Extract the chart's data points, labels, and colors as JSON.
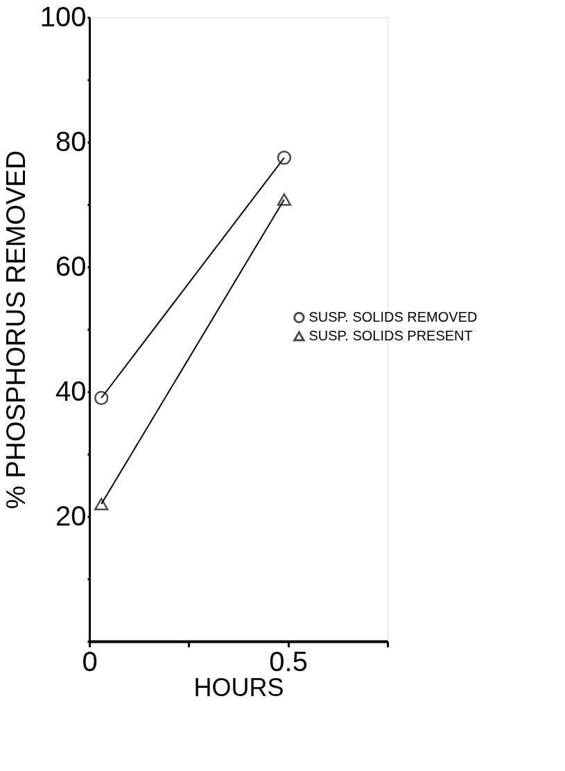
{
  "chart_data": {
    "type": "line",
    "xlabel": "HOURS",
    "ylabel": "% PHOSPHORUS  REMOVED",
    "x": [
      0.03,
      0.49
    ],
    "series": [
      {
        "name": "SUSP. SOLIDS  REMOVED",
        "color": "#000000",
        "marker": "circle",
        "values": [
          39,
          77.5
        ]
      },
      {
        "name": "SUSP. SOLIDS  PRESENT",
        "color": "#000000",
        "marker": "triangle",
        "values": [
          22,
          70.8
        ]
      }
    ],
    "xlim": [
      0,
      0.75
    ],
    "ylim": [
      0,
      100
    ],
    "xticks": [
      0,
      {
        "value": 0.25,
        "label": null
      },
      0.5,
      {
        "value": 0.75,
        "label": null
      }
    ],
    "yticks": [
      {
        "value": 0,
        "label": null
      },
      {
        "value": 10,
        "label": null
      },
      20,
      {
        "value": 30,
        "label": null
      },
      40,
      {
        "value": 50,
        "label": null
      },
      60,
      {
        "value": 70,
        "label": null
      },
      80,
      {
        "value": 90,
        "label": null
      },
      100
    ],
    "grid": false,
    "legend": "right",
    "line_style": "solid"
  }
}
